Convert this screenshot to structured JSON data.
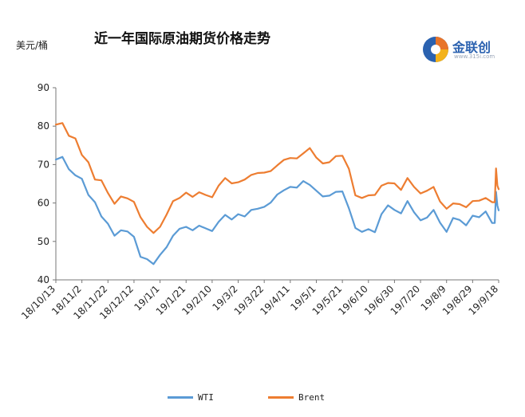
{
  "header": {
    "title": "近一年国际原油期货价格走势",
    "unit": "美元/桶"
  },
  "logo": {
    "name": "金联创",
    "url": "www.315i.com",
    "colors": [
      "#2b62b0",
      "#e8742a",
      "#f3b21a"
    ]
  },
  "chart_data": {
    "type": "line",
    "title": "近一年国际原油期货价格走势",
    "ylabel": "美元/桶",
    "xlabel": "",
    "ylim": [
      40,
      90
    ],
    "yticks": [
      40,
      50,
      60,
      70,
      80,
      90
    ],
    "grid": false,
    "legend_position": "bottom",
    "x_range": [
      "18/10/13",
      "19/9/18"
    ],
    "x_ticks": [
      "18/10/13",
      "18/11/2",
      "18/11/22",
      "18/12/12",
      "19/1/1",
      "19/1/21",
      "19/2/10",
      "19/3/2",
      "19/3/22",
      "19/4/11",
      "19/5/1",
      "19/5/21",
      "19/6/10",
      "19/6/30",
      "19/7/20",
      "19/8/9",
      "19/8/29",
      "19/9/18"
    ],
    "x": [
      "18/10/13",
      "18/10/18",
      "18/10/23",
      "18/10/28",
      "18/11/2",
      "18/11/7",
      "18/11/12",
      "18/11/17",
      "18/11/22",
      "18/11/27",
      "18/12/2",
      "18/12/7",
      "18/12/12",
      "18/12/17",
      "18/12/22",
      "18/12/27",
      "19/1/1",
      "19/1/6",
      "19/1/11",
      "19/1/16",
      "19/1/21",
      "19/1/26",
      "19/1/31",
      "19/2/5",
      "19/2/10",
      "19/2/15",
      "19/2/20",
      "19/2/25",
      "19/3/2",
      "19/3/7",
      "19/3/12",
      "19/3/17",
      "19/3/22",
      "19/3/27",
      "19/4/1",
      "19/4/6",
      "19/4/11",
      "19/4/16",
      "19/4/21",
      "19/4/26",
      "19/5/1",
      "19/5/6",
      "19/5/11",
      "19/5/16",
      "19/5/21",
      "19/5/26",
      "19/5/31",
      "19/6/5",
      "19/6/10",
      "19/6/15",
      "19/6/20",
      "19/6/25",
      "19/6/30",
      "19/7/5",
      "19/7/10",
      "19/7/15",
      "19/7/20",
      "19/7/25",
      "19/7/30",
      "19/8/4",
      "19/8/9",
      "19/8/14",
      "19/8/19",
      "19/8/24",
      "19/8/29",
      "19/9/3",
      "19/9/8",
      "19/9/13",
      "19/9/15",
      "19/9/16",
      "19/9/17",
      "19/9/18"
    ],
    "series": [
      {
        "name": "WTI",
        "color": "#5b9bd5",
        "values": [
          71.3,
          72.0,
          68.8,
          67.2,
          66.3,
          62.1,
          60.2,
          56.5,
          54.6,
          51.5,
          52.9,
          52.6,
          51.2,
          46.0,
          45.4,
          44.1,
          46.5,
          48.5,
          51.5,
          53.3,
          53.8,
          52.9,
          54.1,
          53.4,
          52.7,
          55.1,
          56.9,
          55.7,
          57.1,
          56.5,
          58.2,
          58.5,
          59.0,
          60.1,
          62.2,
          63.3,
          64.2,
          64.0,
          65.7,
          64.7,
          63.2,
          61.7,
          61.9,
          62.9,
          63.0,
          58.6,
          53.5,
          52.5,
          53.2,
          52.4,
          57.1,
          59.4,
          58.2,
          57.3,
          60.5,
          57.6,
          55.5,
          56.2,
          58.2,
          54.9,
          52.5,
          56.1,
          55.6,
          54.2,
          56.7,
          56.3,
          57.8,
          54.8,
          54.8,
          62.9,
          59.3,
          58.1
        ]
      },
      {
        "name": "Brent",
        "color": "#ed7d31",
        "values": [
          80.4,
          80.8,
          77.5,
          76.8,
          72.5,
          70.6,
          66.1,
          65.9,
          62.6,
          59.8,
          61.7,
          61.2,
          60.3,
          56.3,
          53.8,
          52.2,
          53.8,
          57.0,
          60.5,
          61.3,
          62.7,
          61.6,
          62.8,
          62.1,
          61.5,
          64.5,
          66.5,
          65.1,
          65.4,
          66.1,
          67.3,
          67.8,
          67.9,
          68.3,
          69.8,
          71.2,
          71.7,
          71.6,
          72.9,
          74.3,
          71.8,
          70.3,
          70.6,
          72.2,
          72.3,
          68.9,
          62.0,
          61.3,
          62.0,
          62.1,
          64.5,
          65.2,
          65.1,
          63.4,
          66.5,
          64.2,
          62.5,
          63.2,
          64.2,
          60.4,
          58.5,
          59.9,
          59.7,
          58.9,
          60.5,
          60.6,
          61.3,
          60.2,
          60.2,
          69.0,
          64.5,
          63.6
        ]
      }
    ]
  },
  "legend": {
    "items": [
      {
        "label": "WTI",
        "color": "#5b9bd5"
      },
      {
        "label": "Brent",
        "color": "#ed7d31"
      }
    ]
  }
}
